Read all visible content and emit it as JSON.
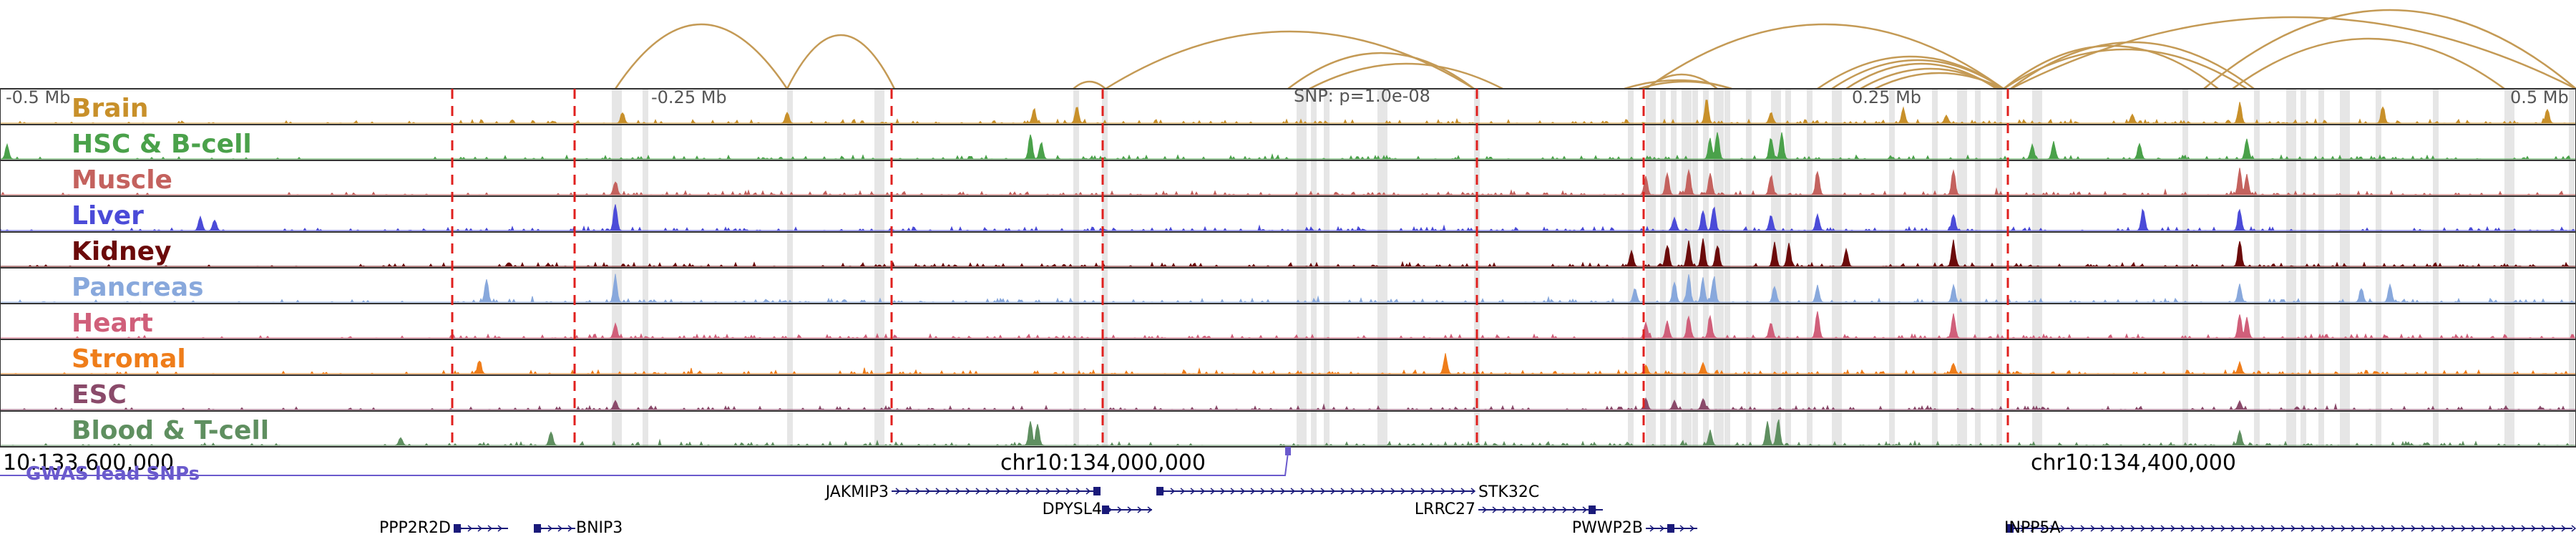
{
  "scale_labels": {
    "left": "-0.5 Mb",
    "left_mid": "-0.25 Mb",
    "snp": "SNP: p=1.0e-08",
    "right_mid": "0.25 Mb",
    "right": "0.5 Mb"
  },
  "tracks": [
    {
      "name": "Brain",
      "color": "#c8902a"
    },
    {
      "name": "HSC & B-cell",
      "color": "#4aa14a"
    },
    {
      "name": "Muscle",
      "color": "#c4625e"
    },
    {
      "name": "Liver",
      "color": "#4b4bd8"
    },
    {
      "name": "Kidney",
      "color": "#6b0a0a"
    },
    {
      "name": "Pancreas",
      "color": "#88a8dc"
    },
    {
      "name": "Heart",
      "color": "#d05f7a"
    },
    {
      "name": "Stromal",
      "color": "#ef7d1a"
    },
    {
      "name": "ESC",
      "color": "#8a4a6a"
    },
    {
      "name": "Blood & T-cell",
      "color": "#5f8f60"
    }
  ],
  "coordinates": {
    "left": "10:133,600,000",
    "mid": "chr10:134,000,000",
    "right": "chr10:134,400,000"
  },
  "gwas_label": "GWAS lead SNPs",
  "genes": [
    {
      "name": "JAKMIP3"
    },
    {
      "name": "STK32C"
    },
    {
      "name": "DPYSL4"
    },
    {
      "name": "LRRC27"
    },
    {
      "name": "PPP2R2D"
    },
    {
      "name": "BNIP3"
    },
    {
      "name": "PWWP2B"
    },
    {
      "name": "INPP5A"
    }
  ],
  "colors": {
    "arc": "#c49a55",
    "vline_red": "#e0201e",
    "highlight": "#d8d8d8",
    "gwas": "#6a5acd",
    "gene": "#1a1a7a"
  }
}
